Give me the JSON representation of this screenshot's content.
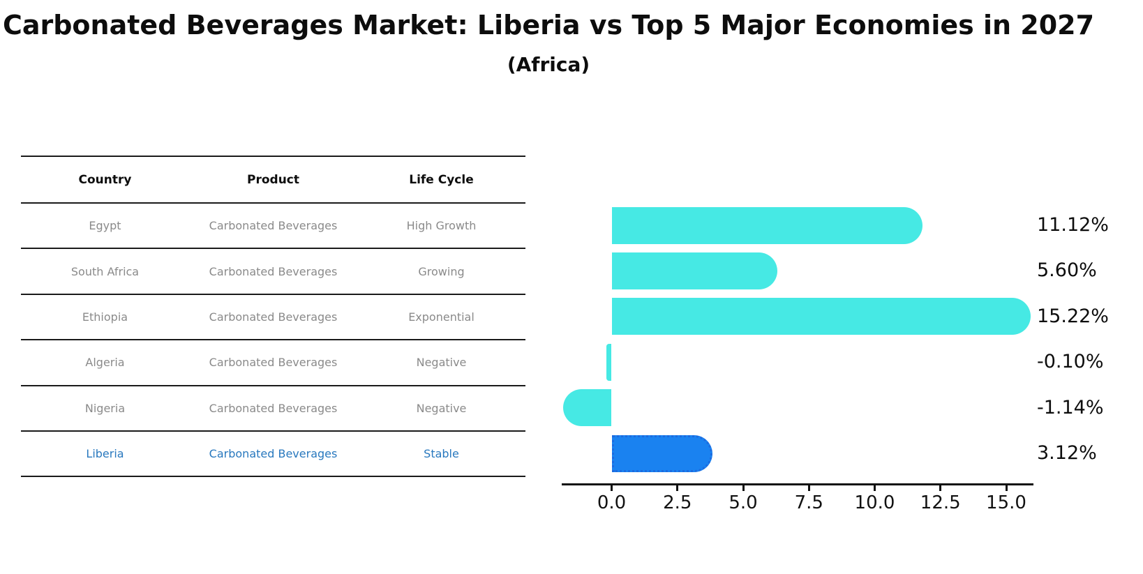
{
  "page": {
    "title": "Carbonated Beverages Market: Liberia vs Top 5 Major Economies in 2027",
    "subtitle": "(Africa)"
  },
  "table": {
    "columns": [
      "Country",
      "Product",
      "Life Cycle"
    ],
    "rows": [
      {
        "country": "Egypt",
        "product": "Carbonated Beverages",
        "life_cycle": "High Growth"
      },
      {
        "country": "South Africa",
        "product": "Carbonated Beverages",
        "life_cycle": "Growing"
      },
      {
        "country": "Ethiopia",
        "product": "Carbonated Beverages",
        "life_cycle": "Exponential"
      },
      {
        "country": "Algeria",
        "product": "Carbonated Beverages",
        "life_cycle": "Negative"
      },
      {
        "country": "Nigeria",
        "product": "Carbonated Beverages",
        "life_cycle": "Negative"
      },
      {
        "country": "Liberia",
        "product": "Carbonated Beverages",
        "life_cycle": "Stable"
      }
    ],
    "highlight_row": "Liberia"
  },
  "chart_data": {
    "type": "bar",
    "orientation": "horizontal",
    "title": "Carbonated Beverages Market: Liberia vs Top 5 Major Economies in 2027",
    "subtitle": "(Africa)",
    "categories": [
      "Egypt",
      "South Africa",
      "Ethiopia",
      "Algeria",
      "Nigeria",
      "Liberia"
    ],
    "values": [
      11.12,
      5.6,
      15.22,
      -0.1,
      -1.14,
      3.12
    ],
    "value_labels": [
      "11.12%",
      "5.60%",
      "15.22%",
      "-0.10%",
      "-1.14%",
      "3.12%"
    ],
    "highlight_index": 5,
    "xticks": [
      0,
      2.5,
      5,
      7.5,
      10,
      12.5,
      15
    ],
    "xtick_labels": [
      "0.0",
      "2.5",
      "5.0",
      "7.5",
      "10.0",
      "12.5",
      "15.0"
    ],
    "xlim": [
      -2,
      16
    ],
    "grid": false,
    "legend": "none",
    "colors": {
      "bar": "#46E9E4",
      "highlight_bar": "#1A82F0",
      "highlight_border": "#1C6BE0",
      "highlight_text": "#2878BE",
      "row_text": "#8a8a8a",
      "header_text": "#0d0d0d",
      "axis": "#111111"
    }
  }
}
